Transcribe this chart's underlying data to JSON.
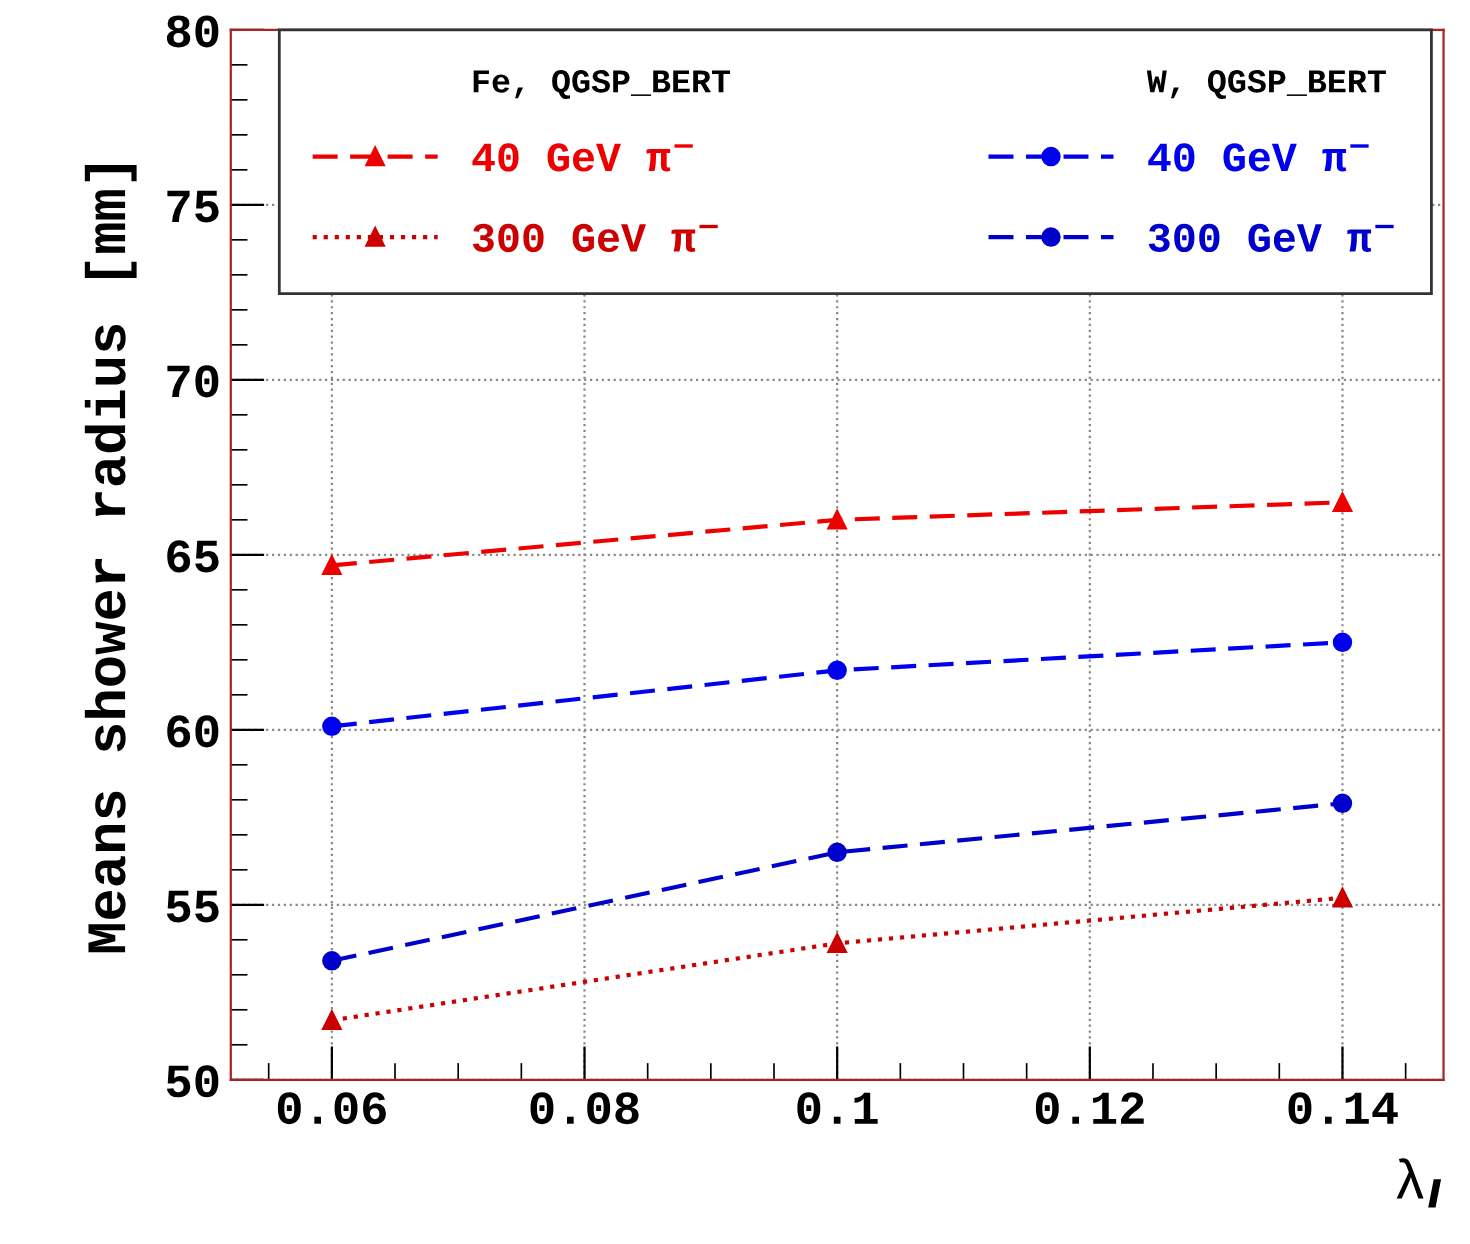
{
  "chart_data": {
    "type": "line",
    "xlabel": "λ$_{I}$",
    "ylabel": "Means shower radius [mm]",
    "legend_title": [
      "Fe, QGSP_BERT",
      "W, QGSP_BERT"
    ],
    "legend": "top",
    "x": [
      0.06,
      0.1,
      0.14
    ],
    "series": [
      {
        "name": "40 GeV π$^{−}$",
        "color": "#ee0000",
        "values": [
          64.7,
          66.0,
          66.5
        ],
        "marker": "triangle",
        "line_style": "dashed"
      },
      {
        "name": "300 GeV π$^{−}$",
        "color": "#cc0000",
        "values": [
          51.7,
          53.9,
          55.2
        ],
        "marker": "triangle",
        "line_style": "dotted"
      },
      {
        "name": "40 GeV π$^{−}$",
        "color": "#0000ee",
        "values": [
          60.1,
          61.7,
          62.5
        ],
        "marker": "circle",
        "line_style": "dashed"
      },
      {
        "name": "300 GeV π$^{−}$",
        "color": "#0000cc",
        "values": [
          53.4,
          56.5,
          57.9
        ],
        "marker": "circle",
        "line_style": "dashed"
      }
    ],
    "xlim": [
      0.052,
      0.148
    ],
    "xticks": [
      0.06,
      0.08,
      0.1,
      0.12,
      0.14
    ],
    "ylim": [
      50,
      80
    ],
    "yticks": [
      50,
      55,
      60,
      65,
      70,
      75,
      80
    ],
    "grid": true
  }
}
